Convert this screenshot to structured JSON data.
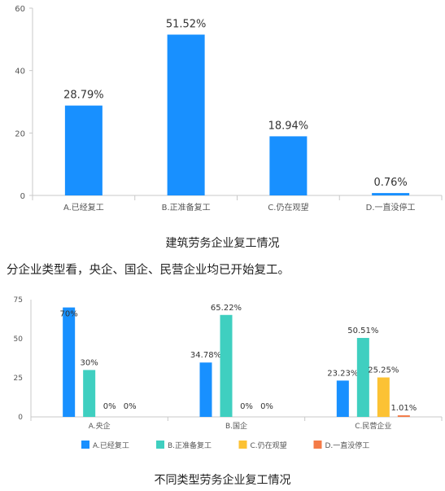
{
  "chart_data": [
    {
      "type": "bar",
      "categories": [
        "A.已经复工",
        "B.正准备复工",
        "C.仍在观望",
        "D.一直没停工"
      ],
      "values": [
        28.79,
        51.52,
        18.94,
        0.76
      ],
      "data_labels": [
        "28.79%",
        "51.52%",
        "18.94%",
        "0.76%"
      ],
      "ylim": [
        0,
        60
      ],
      "yticks": [
        0,
        20,
        40,
        60
      ],
      "grid": false,
      "color": "#1890ff"
    },
    {
      "type": "bar",
      "categories": [
        "A.央企",
        "B.国企",
        "C.民营企业"
      ],
      "series": [
        {
          "name": "A.已经复工",
          "color": "#1890ff",
          "values": [
            70,
            34.78,
            23.23
          ],
          "labels": [
            "70%",
            "34.78%",
            "23.23%"
          ]
        },
        {
          "name": "B.正准备复工",
          "color": "#3fcfc0",
          "values": [
            30,
            65.22,
            50.51
          ],
          "labels": [
            "30%",
            "65.22%",
            "50.51%"
          ]
        },
        {
          "name": "C.仍在观望",
          "color": "#fcc234",
          "values": [
            0,
            0,
            25.25
          ],
          "labels": [
            "0%",
            "0%",
            "25.25%"
          ]
        },
        {
          "name": "D.一直没停工",
          "color": "#f47b47",
          "values": [
            0,
            0,
            1.01
          ],
          "labels": [
            "0%",
            "0%",
            "1.01%"
          ]
        }
      ],
      "ylim": [
        0,
        75
      ],
      "yticks": [
        0,
        25,
        50,
        75
      ],
      "grid": false,
      "legend": "bottom"
    }
  ],
  "captions": {
    "chart1": "建筑劳务企业复工情况",
    "paragraph": "分企业类型看，央企、国企、民营企业均已开始复工。",
    "chart2": "不同类型劳务企业复工情况"
  }
}
